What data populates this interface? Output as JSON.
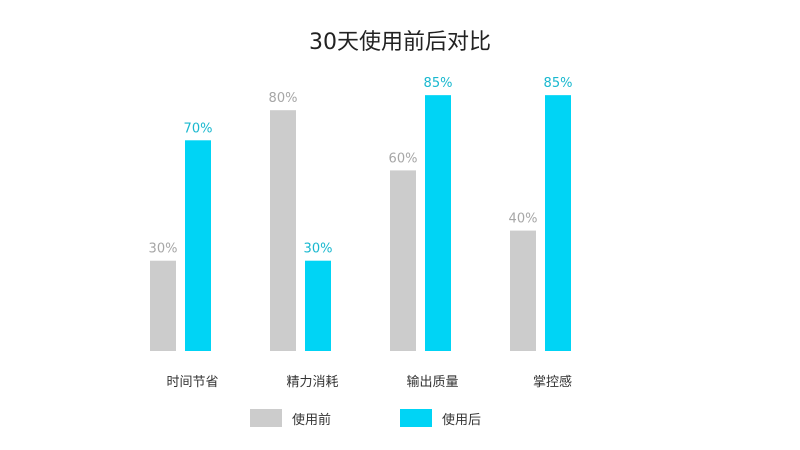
{
  "chart_data": {
    "type": "bar",
    "title": "30天使用前后对比",
    "categories": [
      "时间节省",
      "精力消耗",
      "输出质量",
      "掌控感"
    ],
    "series": [
      {
        "name": "使用前",
        "values": [
          30,
          80,
          60,
          40
        ],
        "labels": [
          "30%",
          "80%",
          "60%",
          "40%"
        ],
        "color": "#cccccc",
        "label_color": "#a6a6a6"
      },
      {
        "name": "使用后",
        "values": [
          70,
          30,
          85,
          85
        ],
        "labels": [
          "70%",
          "30%",
          "85%",
          "85%"
        ],
        "color": "#00d4f5",
        "label_color": "#19b8cf"
      }
    ],
    "ylim": [
      0,
      100
    ],
    "grid": false,
    "legend": "bottom-center"
  }
}
